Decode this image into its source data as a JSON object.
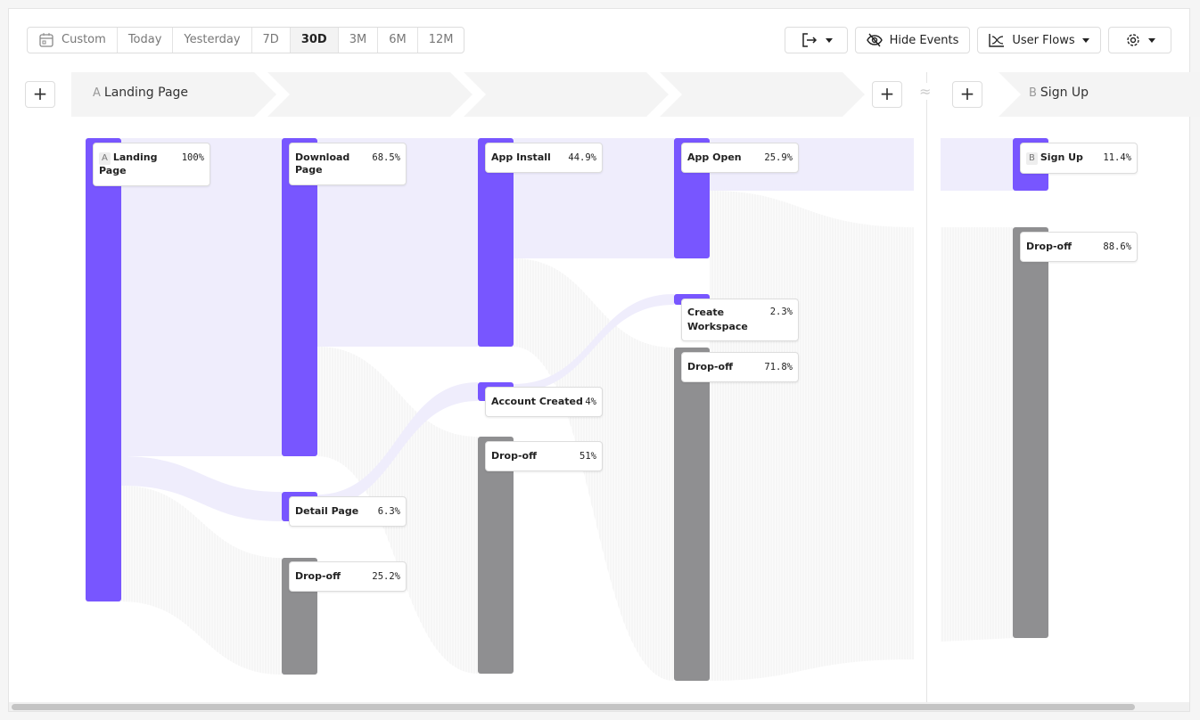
{
  "toolbar": {
    "date_ranges": [
      "Custom",
      "Today",
      "Yesterday",
      "7D",
      "30D",
      "3M",
      "6M",
      "12M"
    ],
    "active_range": "30D",
    "hide_events": "Hide Events",
    "chart_type": "User Flows",
    "icons": [
      "calendar-icon",
      "export-icon",
      "eye-slash-icon",
      "flows-icon",
      "gear-icon"
    ]
  },
  "steps": {
    "start_letter": "A",
    "start": "Landing Page",
    "end_letter": "B",
    "end": "Sign Up",
    "gap_symbol": "≈"
  },
  "nodes": [
    {
      "letter": "A",
      "name": "Landing Page",
      "pct": "100%"
    },
    {
      "name": "Download Page",
      "pct": "68.5%"
    },
    {
      "name": "Detail Page",
      "pct": "6.3%"
    },
    {
      "name": "Drop-off",
      "pct": "25.2%"
    },
    {
      "name": "App Install",
      "pct": "44.9%"
    },
    {
      "name": "Account Created",
      "pct": "4%"
    },
    {
      "name": "Drop-off",
      "pct": "51%"
    },
    {
      "name": "App Open",
      "pct": "25.9%"
    },
    {
      "name": "Create Workspace",
      "pct": "2.3%"
    },
    {
      "name": "Drop-off",
      "pct": "71.8%"
    },
    {
      "letter": "B",
      "name": "Sign Up",
      "pct": "11.4%"
    },
    {
      "name": "Drop-off",
      "pct": "88.6%"
    }
  ],
  "colors": {
    "event": "#7856ff",
    "dropoff": "#8f8f91",
    "flow": "#efedfc"
  }
}
